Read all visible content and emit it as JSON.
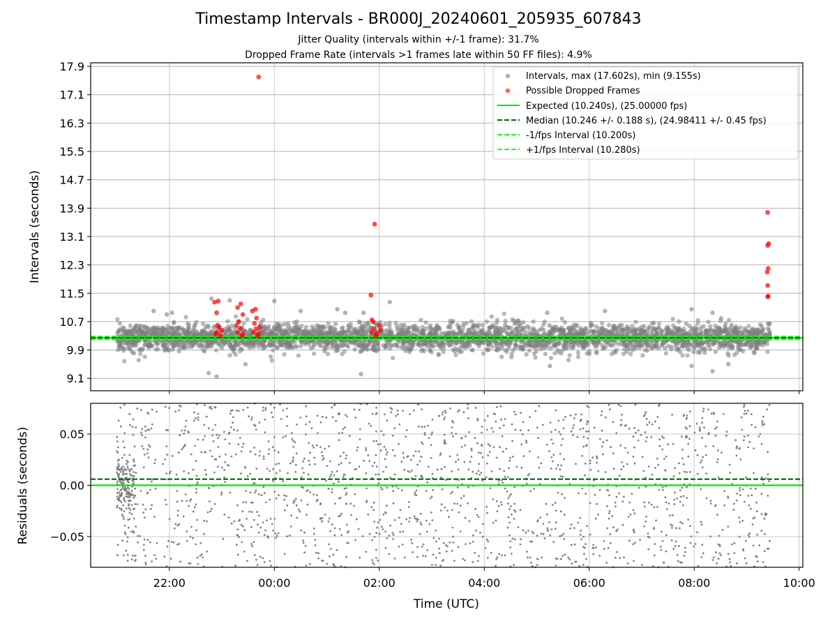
{
  "title": "Timestamp Intervals - BR000J_20240601_205935_607843",
  "subtitle_1": "Jitter Quality (intervals within +/-1 frame): 31.7%",
  "subtitle_2": "Dropped Frame Rate (intervals >1 frames late within 50 FF files): 4.9%",
  "colors": {
    "intervals": "#808080",
    "dropped": "#ff0000",
    "expected": "#00e600",
    "median": "#006400",
    "fps_band": "#1aff1a",
    "grid": "#b0b0b0"
  },
  "chart_data": [
    {
      "type": "scatter",
      "ylabel": "Intervals (seconds)",
      "xlim": [
        20.5,
        34.07
      ],
      "ylim": [
        8.75,
        18.0
      ],
      "yticks": [
        "9.1",
        "9.9",
        "10.7",
        "11.5",
        "12.3",
        "13.1",
        "13.9",
        "14.7",
        "15.5",
        "16.3",
        "17.1",
        "17.9"
      ],
      "grid": true,
      "legend_position": "top-right",
      "legend": [
        {
          "label": "Intervals, max (17.602s), min (9.155s)",
          "marker": "dot",
          "color": "#808080"
        },
        {
          "label": "Possible Dropped Frames",
          "marker": "dot",
          "color": "#ff0000"
        },
        {
          "label": "Expected (10.240s), (25.00000 fps)",
          "marker": "line",
          "color": "#00e600"
        },
        {
          "label": "Median (10.246 +/- 0.188 s), (24.98411 +/- 0.45 fps)",
          "marker": "dash",
          "color": "#006400"
        },
        {
          "label": "-1/fps Interval (10.200s)",
          "marker": "dash",
          "color": "#1aff1a"
        },
        {
          "label": "+1/fps Interval (10.280s)",
          "marker": "dash",
          "color": "#1aff1a"
        }
      ],
      "reference_lines": {
        "expected": 10.24,
        "median": 10.246,
        "minus_1fps": 10.2,
        "plus_1fps": 10.28
      },
      "intervals_summary": {
        "x_start": 21.0,
        "x_end": 33.45,
        "max": 17.602,
        "min": 9.155
      },
      "intervals_outliers": [
        {
          "x": 22.8,
          "y": 11.35
        },
        {
          "x": 23.15,
          "y": 11.3
        },
        {
          "x": 21.7,
          "y": 11.0
        },
        {
          "x": 21.95,
          "y": 10.9
        },
        {
          "x": 22.05,
          "y": 10.95
        },
        {
          "x": 24.5,
          "y": 11.0
        },
        {
          "x": 24.0,
          "y": 11.28
        },
        {
          "x": 25.2,
          "y": 11.05
        },
        {
          "x": 25.35,
          "y": 10.95
        },
        {
          "x": 25.7,
          "y": 10.95
        },
        {
          "x": 26.2,
          "y": 11.25
        },
        {
          "x": 29.2,
          "y": 10.95
        },
        {
          "x": 30.3,
          "y": 11.0
        },
        {
          "x": 31.95,
          "y": 11.05
        },
        {
          "x": 32.35,
          "y": 10.95
        },
        {
          "x": 22.75,
          "y": 9.25
        },
        {
          "x": 22.9,
          "y": 9.15
        },
        {
          "x": 25.65,
          "y": 9.22
        },
        {
          "x": 23.45,
          "y": 9.5
        },
        {
          "x": 29.25,
          "y": 9.45
        },
        {
          "x": 31.95,
          "y": 9.45
        },
        {
          "x": 32.35,
          "y": 9.3
        },
        {
          "x": 32.65,
          "y": 9.5
        }
      ],
      "dropped_frames": [
        {
          "x": 22.9,
          "y": 10.4
        },
        {
          "x": 22.95,
          "y": 10.55
        },
        {
          "x": 22.88,
          "y": 10.35
        },
        {
          "x": 23.0,
          "y": 10.45
        },
        {
          "x": 22.92,
          "y": 10.6
        },
        {
          "x": 22.97,
          "y": 10.3
        },
        {
          "x": 22.93,
          "y": 11.28
        },
        {
          "x": 22.86,
          "y": 11.25
        },
        {
          "x": 22.9,
          "y": 10.95
        },
        {
          "x": 23.3,
          "y": 10.4
        },
        {
          "x": 23.35,
          "y": 10.5
        },
        {
          "x": 23.4,
          "y": 10.35
        },
        {
          "x": 23.28,
          "y": 10.6
        },
        {
          "x": 23.32,
          "y": 10.7
        },
        {
          "x": 23.38,
          "y": 10.3
        },
        {
          "x": 23.36,
          "y": 11.2
        },
        {
          "x": 23.3,
          "y": 11.1
        },
        {
          "x": 23.4,
          "y": 10.9
        },
        {
          "x": 23.6,
          "y": 10.4
        },
        {
          "x": 23.65,
          "y": 10.5
        },
        {
          "x": 23.7,
          "y": 10.35
        },
        {
          "x": 23.62,
          "y": 10.65
        },
        {
          "x": 23.68,
          "y": 10.3
        },
        {
          "x": 23.72,
          "y": 10.55
        },
        {
          "x": 23.58,
          "y": 11.0
        },
        {
          "x": 23.64,
          "y": 11.05
        },
        {
          "x": 23.66,
          "y": 10.8
        },
        {
          "x": 23.7,
          "y": 17.602
        },
        {
          "x": 25.85,
          "y": 10.4
        },
        {
          "x": 25.9,
          "y": 10.5
        },
        {
          "x": 25.95,
          "y": 10.35
        },
        {
          "x": 26.0,
          "y": 10.6
        },
        {
          "x": 25.88,
          "y": 10.7
        },
        {
          "x": 25.93,
          "y": 10.3
        },
        {
          "x": 25.86,
          "y": 10.75
        },
        {
          "x": 26.02,
          "y": 10.45
        },
        {
          "x": 25.84,
          "y": 11.45
        },
        {
          "x": 25.91,
          "y": 13.45
        },
        {
          "x": 33.4,
          "y": 13.78
        },
        {
          "x": 33.42,
          "y": 12.9
        },
        {
          "x": 33.4,
          "y": 12.85
        },
        {
          "x": 33.41,
          "y": 12.2
        },
        {
          "x": 33.39,
          "y": 12.1
        },
        {
          "x": 33.4,
          "y": 11.72
        },
        {
          "x": 33.41,
          "y": 11.42
        },
        {
          "x": 33.4,
          "y": 11.4
        }
      ]
    },
    {
      "type": "scatter",
      "xlabel": "Time (UTC)",
      "ylabel": "Residuals (seconds)",
      "xlim": [
        20.5,
        34.07
      ],
      "ylim": [
        -0.08,
        0.08
      ],
      "xticks": [
        {
          "value": 22,
          "label": "22:00"
        },
        {
          "value": 24,
          "label": "00:00"
        },
        {
          "value": 26,
          "label": "02:00"
        },
        {
          "value": 28,
          "label": "04:00"
        },
        {
          "value": 30,
          "label": "06:00"
        },
        {
          "value": 32,
          "label": "08:00"
        },
        {
          "value": 34,
          "label": "10:00"
        }
      ],
      "yticks": [
        {
          "value": 0.05,
          "label": "0.05"
        },
        {
          "value": 0.0,
          "label": "0.00"
        },
        {
          "value": -0.05,
          "label": "−0.05"
        }
      ],
      "grid": true,
      "reference_lines": {
        "zero": 0.0,
        "median_offset": 0.006
      },
      "residuals_summary": {
        "x_start": 21.0,
        "x_end": 33.45,
        "range": [
          -0.08,
          0.08
        ]
      }
    }
  ]
}
